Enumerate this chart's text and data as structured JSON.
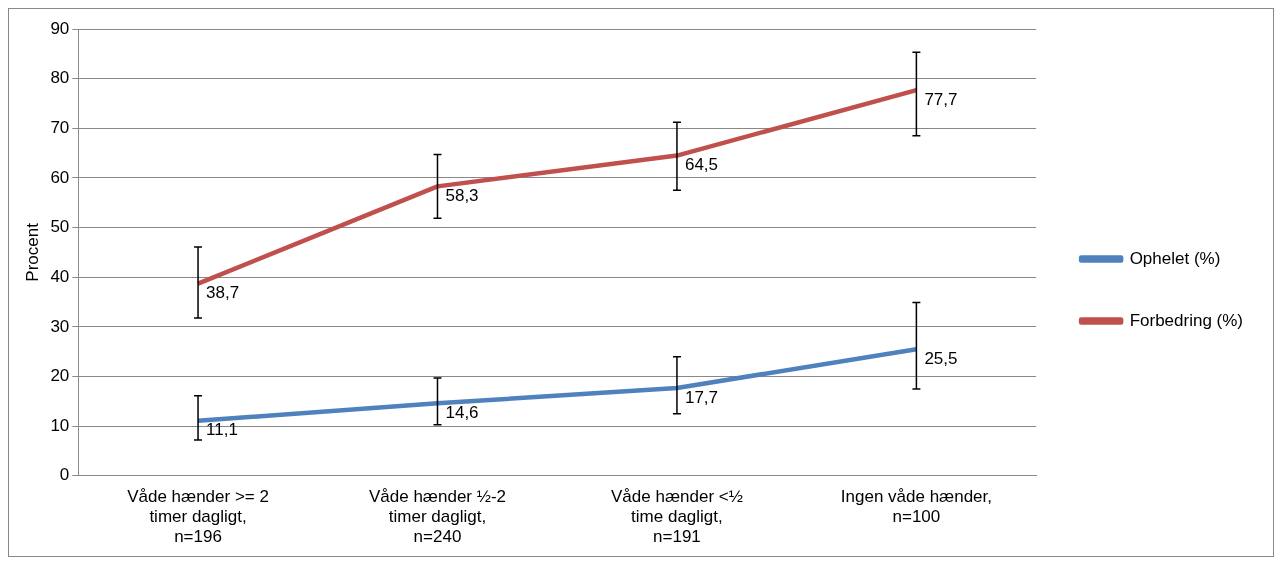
{
  "chart_data": {
    "type": "line",
    "ylabel": "Procent",
    "categories": [
      "Våde hænder >= 2 timer dagligt, n=196",
      "Våde hænder ½-2 timer dagligt, n=240",
      "Våde hænder <½ time dagligt, n=191",
      "Ingen våde hænder, n=100"
    ],
    "series": [
      {
        "name": "Ophelet (%)",
        "color": "#4f81bd",
        "values": [
          11.1,
          14.6,
          17.7,
          25.5
        ],
        "errors": [
          [
            7.2,
            16.1
          ],
          [
            10.3,
            19.7
          ],
          [
            12.5,
            24.0
          ],
          [
            17.5,
            34.9
          ]
        ],
        "value_labels": [
          "11,1",
          "14,6",
          "17,7",
          "25,5"
        ]
      },
      {
        "name": "Forbedring (%)",
        "color": "#c0504d",
        "values": [
          38.7,
          58.3,
          64.5,
          77.7
        ],
        "errors": [
          [
            31.8,
            46.1
          ],
          [
            51.9,
            64.7
          ],
          [
            57.5,
            71.2
          ],
          [
            68.5,
            85.3
          ]
        ],
        "value_labels": [
          "38,7",
          "58,3",
          "64,5",
          "77,7"
        ]
      }
    ],
    "ylim": [
      0,
      90
    ],
    "yticks": [
      0,
      10,
      20,
      30,
      40,
      50,
      60,
      70,
      80,
      90
    ],
    "grid": "y",
    "legend": "right",
    "marker": "none",
    "line_style": "solid"
  }
}
